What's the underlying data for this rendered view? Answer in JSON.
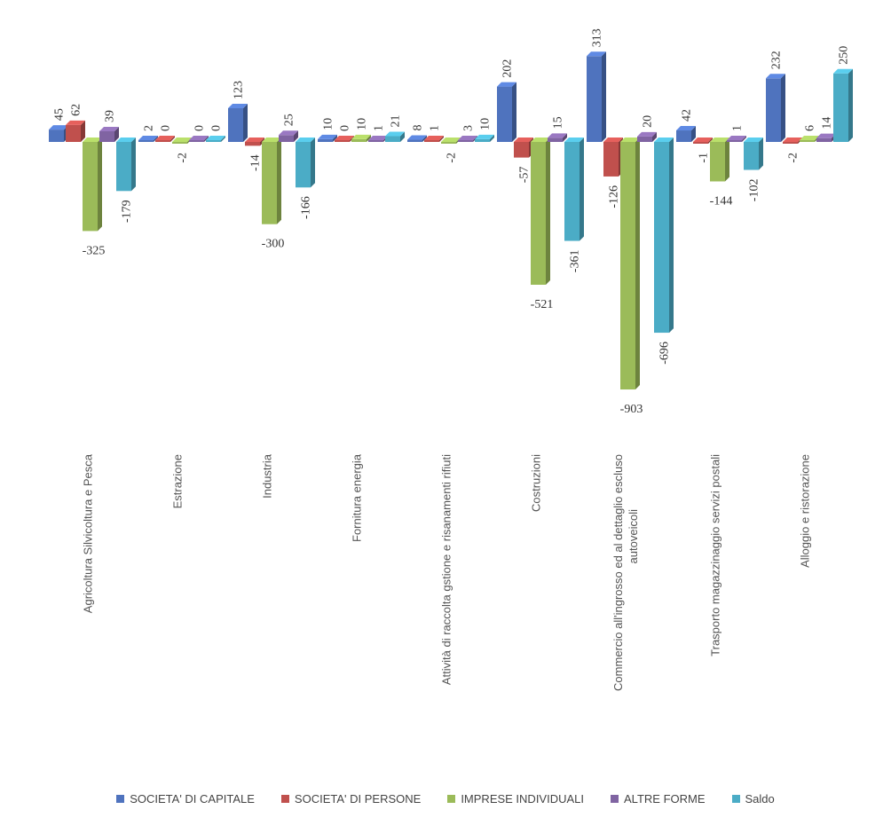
{
  "chart_data": {
    "type": "bar",
    "categories": [
      "Agricoltura Silvicoltura e Pesca",
      "Estrazione",
      "Industria",
      "Fornitura energia",
      "Attività di raccolta gstione e risanamenti rifiuti",
      "Costruzioni",
      "Commercio all'ingrosso ed al dettaglio escluso autoveicoli",
      "Trasporto magazzinaggio servizi postali",
      "Alloggio e ristorazione"
    ],
    "series": [
      {
        "name": "SOCIETA' DI CAPITALE",
        "color": "#4F73BE",
        "values": [
          45,
          2,
          123,
          10,
          8,
          202,
          313,
          42,
          232
        ]
      },
      {
        "name": "SOCIETA' DI PERSONE",
        "color": "#C0504D",
        "values": [
          62,
          0,
          -14,
          0,
          1,
          -57,
          -126,
          -1,
          -2
        ]
      },
      {
        "name": "IMPRESE INDIVIDUALI",
        "color": "#9BBB59",
        "values": [
          -325,
          -2,
          -300,
          10,
          -2,
          -521,
          -903,
          -144,
          6
        ]
      },
      {
        "name": "ALTRE FORME",
        "color": "#8064A2",
        "values": [
          39,
          0,
          25,
          1,
          3,
          15,
          20,
          1,
          14
        ]
      },
      {
        "name": "Saldo",
        "color": "#4BACC6",
        "values": [
          -179,
          0,
          -166,
          21,
          10,
          -361,
          -696,
          -102,
          250
        ]
      }
    ],
    "ylim": [
      -903,
      313
    ],
    "grid": false,
    "legend_position": "bottom",
    "title": "",
    "xlabel": "",
    "ylabel": ""
  }
}
